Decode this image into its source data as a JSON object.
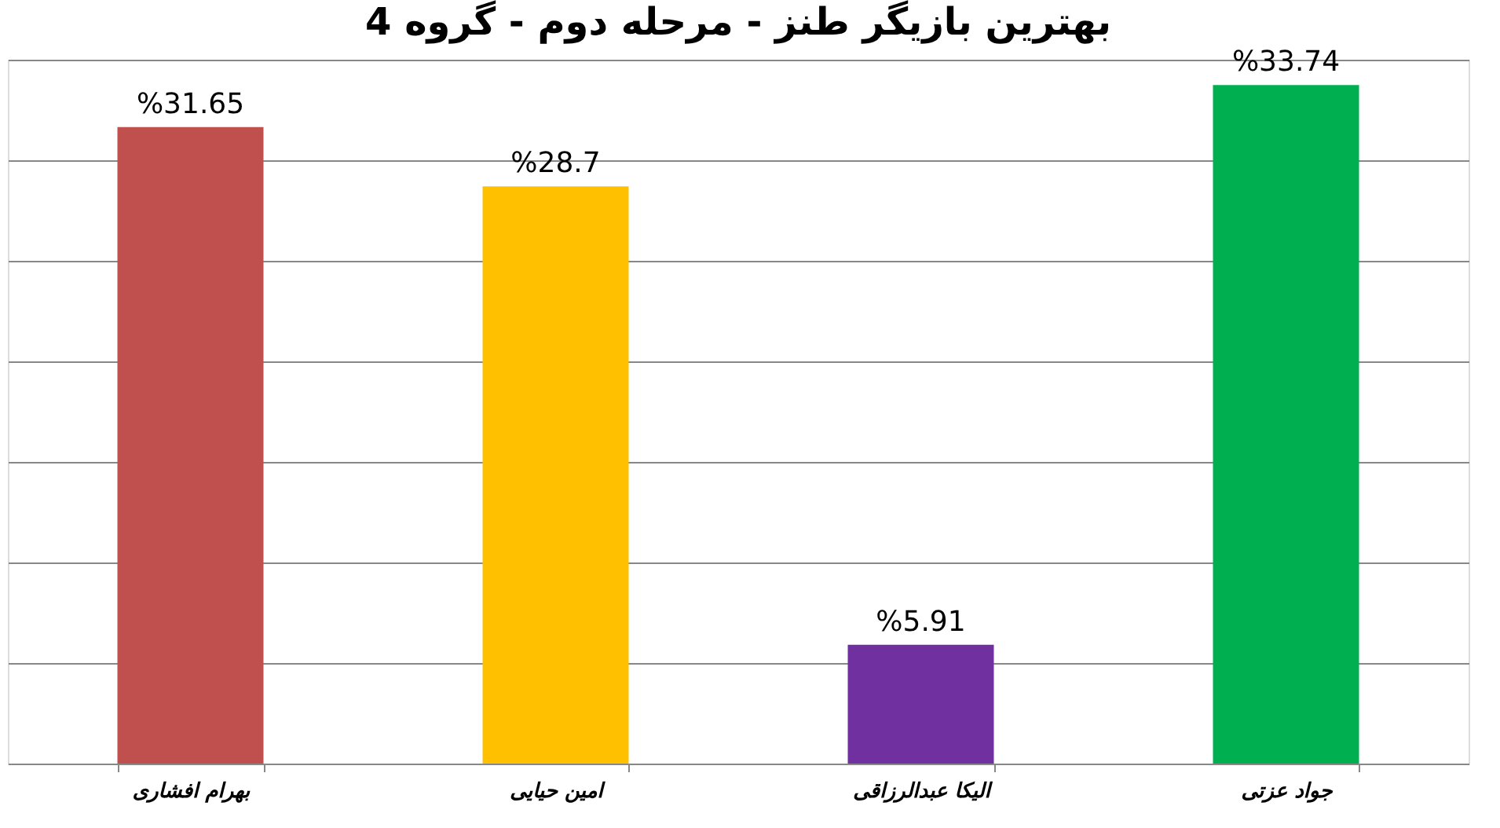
{
  "chart_data": {
    "type": "bar",
    "title": "بهترین بازیگر طنز - مرحله دوم - گروه 4",
    "categories": [
      "بهرام افشاری",
      "امین حیایی",
      "الیکا عبدالرزاقی",
      "جواد عزتی"
    ],
    "values": [
      31.65,
      28.7,
      5.91,
      33.74
    ],
    "colors": [
      "#c0504d",
      "#ffc000",
      "#7030a0",
      "#00b050"
    ],
    "value_labels": [
      "%31.65",
      "%28.7",
      "%5.91",
      "%33.74"
    ],
    "ylim": [
      0,
      35
    ],
    "yticks": [
      {
        "value": 0,
        "label": null
      },
      {
        "value": 5,
        "label": null
      },
      {
        "value": 10,
        "label": null
      },
      {
        "value": 15,
        "label": null
      },
      {
        "value": 20,
        "label": null
      },
      {
        "value": 25,
        "label": null
      },
      {
        "value": 30,
        "label": null
      },
      {
        "value": 35,
        "label": null
      }
    ],
    "grid": "y",
    "tick_labels": "x"
  }
}
